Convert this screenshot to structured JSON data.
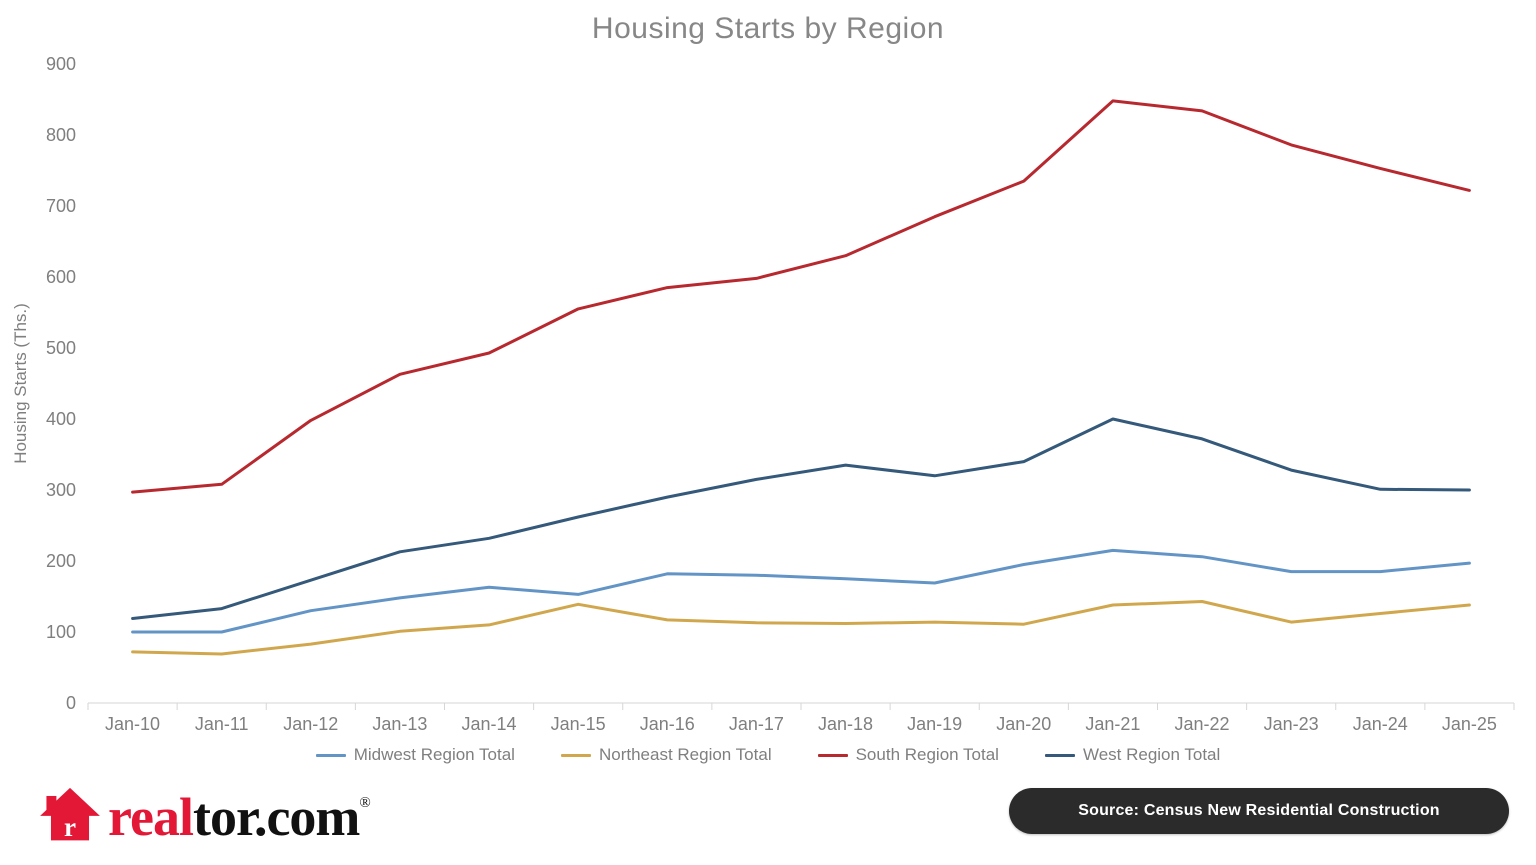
{
  "title": "Housing Starts by Region",
  "chart_data": {
    "type": "line",
    "title": "Housing Starts by Region",
    "xlabel": "",
    "ylabel": "Housing Starts (Ths.)",
    "ylim": [
      0,
      900
    ],
    "y_tick_step": 100,
    "y_ticks": [
      0,
      100,
      200,
      300,
      400,
      500,
      600,
      700,
      800,
      900
    ],
    "grid": false,
    "legend_position": "bottom",
    "categories": [
      "Jan-10",
      "Jan-11",
      "Jan-12",
      "Jan-13",
      "Jan-14",
      "Jan-15",
      "Jan-16",
      "Jan-17",
      "Jan-18",
      "Jan-19",
      "Jan-20",
      "Jan-21",
      "Jan-22",
      "Jan-23",
      "Jan-24",
      "Jan-25"
    ],
    "series": [
      {
        "name": "Midwest Region Total",
        "color": "#6394C6",
        "values": [
          100,
          100,
          130,
          148,
          163,
          153,
          182,
          180,
          175,
          169,
          195,
          215,
          206,
          185,
          185,
          197
        ]
      },
      {
        "name": "Northeast Region Total",
        "color": "#D1A74E",
        "values": [
          72,
          69,
          83,
          101,
          110,
          139,
          117,
          113,
          112,
          114,
          111,
          138,
          143,
          114,
          126,
          138
        ]
      },
      {
        "name": "South Region Total",
        "color": "#B7292F",
        "values": [
          297,
          308,
          398,
          463,
          493,
          555,
          585,
          598,
          630,
          685,
          735,
          848,
          834,
          786,
          753,
          722
        ]
      },
      {
        "name": "West Region Total",
        "color": "#34597A",
        "values": [
          119,
          133,
          173,
          213,
          232,
          262,
          290,
          315,
          335,
          320,
          340,
          400,
          372,
          328,
          301,
          300
        ]
      }
    ]
  },
  "axis_colors": {
    "label_gray": "#7f7f7f",
    "line_gray": "#d6d6d6"
  },
  "footer": {
    "logo": {
      "house_letter": "r",
      "brand_prefix": "real",
      "brand_suffix": "tor.com",
      "registered_mark": "®",
      "brand_red": "#E31837",
      "brand_black": "#111111"
    },
    "source_badge": {
      "text": "Source: Census New Residential Construction",
      "bg": "#2b2b2b",
      "text_color": "#ffffff"
    }
  }
}
